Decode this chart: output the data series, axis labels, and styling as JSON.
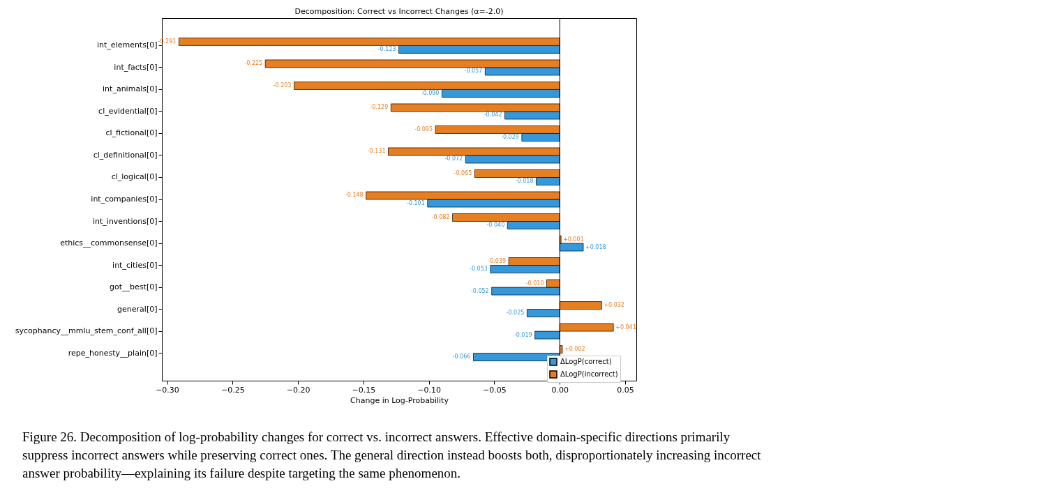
{
  "chart_data": {
    "type": "bar",
    "orientation": "horizontal",
    "title": "Decomposition: Correct vs Incorrect Changes (α=-2.0)",
    "xlabel": "Change in Log-Probability",
    "categories": [
      "int_elements[0]",
      "int_facts[0]",
      "int_animals[0]",
      "cl_evidential[0]",
      "cl_fictional[0]",
      "cl_definitional[0]",
      "cl_logical[0]",
      "int_companies[0]",
      "int_inventions[0]",
      "ethics__commonsense[0]",
      "int_cities[0]",
      "got__best[0]",
      "general[0]",
      "sycophancy__mmlu_stem_conf_all[0]",
      "repe_honesty__plain[0]"
    ],
    "series": [
      {
        "name": "ΔLogP(correct)",
        "color": "#3498db",
        "values": [
          -0.123,
          -0.057,
          -0.09,
          -0.042,
          -0.029,
          -0.072,
          -0.018,
          -0.101,
          -0.04,
          0.018,
          -0.053,
          -0.052,
          -0.025,
          -0.019,
          -0.066
        ],
        "value_labels": [
          "-0.123",
          "-0.057",
          "-0.090",
          "-0.042",
          "-0.029",
          "-0.072",
          "-0.018",
          "-0.101",
          "-0.040",
          "+0.018",
          "-0.053",
          "-0.052",
          "-0.025",
          "-0.019",
          "-0.066"
        ]
      },
      {
        "name": "ΔLogP(incorrect)",
        "color": "#e67e22",
        "values": [
          -0.291,
          -0.225,
          -0.203,
          -0.129,
          -0.095,
          -0.131,
          -0.065,
          -0.148,
          -0.082,
          0.001,
          -0.039,
          -0.01,
          0.032,
          0.041,
          0.002
        ],
        "value_labels": [
          "-0.291",
          "-0.225",
          "-0.203",
          "-0.129",
          "-0.095",
          "-0.131",
          "-0.065",
          "-0.148",
          "-0.082",
          "+0.001",
          "-0.039",
          "-0.010",
          "+0.032",
          "+0.041",
          "+0.002"
        ]
      }
    ],
    "xlim": [
      -0.304,
      0.0585
    ],
    "xticks": [
      {
        "value": -0.3,
        "label": "−0.30"
      },
      {
        "value": -0.25,
        "label": "−0.25"
      },
      {
        "value": -0.2,
        "label": "−0.20"
      },
      {
        "value": -0.15,
        "label": "−0.15"
      },
      {
        "value": -0.1,
        "label": "−0.10"
      },
      {
        "value": -0.05,
        "label": "−0.05"
      },
      {
        "value": 0,
        "label": "0.00"
      },
      {
        "value": 0.05,
        "label": "0.05"
      }
    ],
    "ref_lines": [
      {
        "axis": "x",
        "value": 0,
        "color": "#000000"
      }
    ],
    "grid": false,
    "legend": "bottom right",
    "annotations": [
      "Figure 26. Decomposition of log-probability changes for correct vs. incorrect answers. Effective domain-specific directions primarily suppress incorrect answers while preserving correct ones. The general direction instead boosts both, disproportionately increasing incorrect answer probability—explaining its failure despite targeting the same phenomenon."
    ]
  }
}
